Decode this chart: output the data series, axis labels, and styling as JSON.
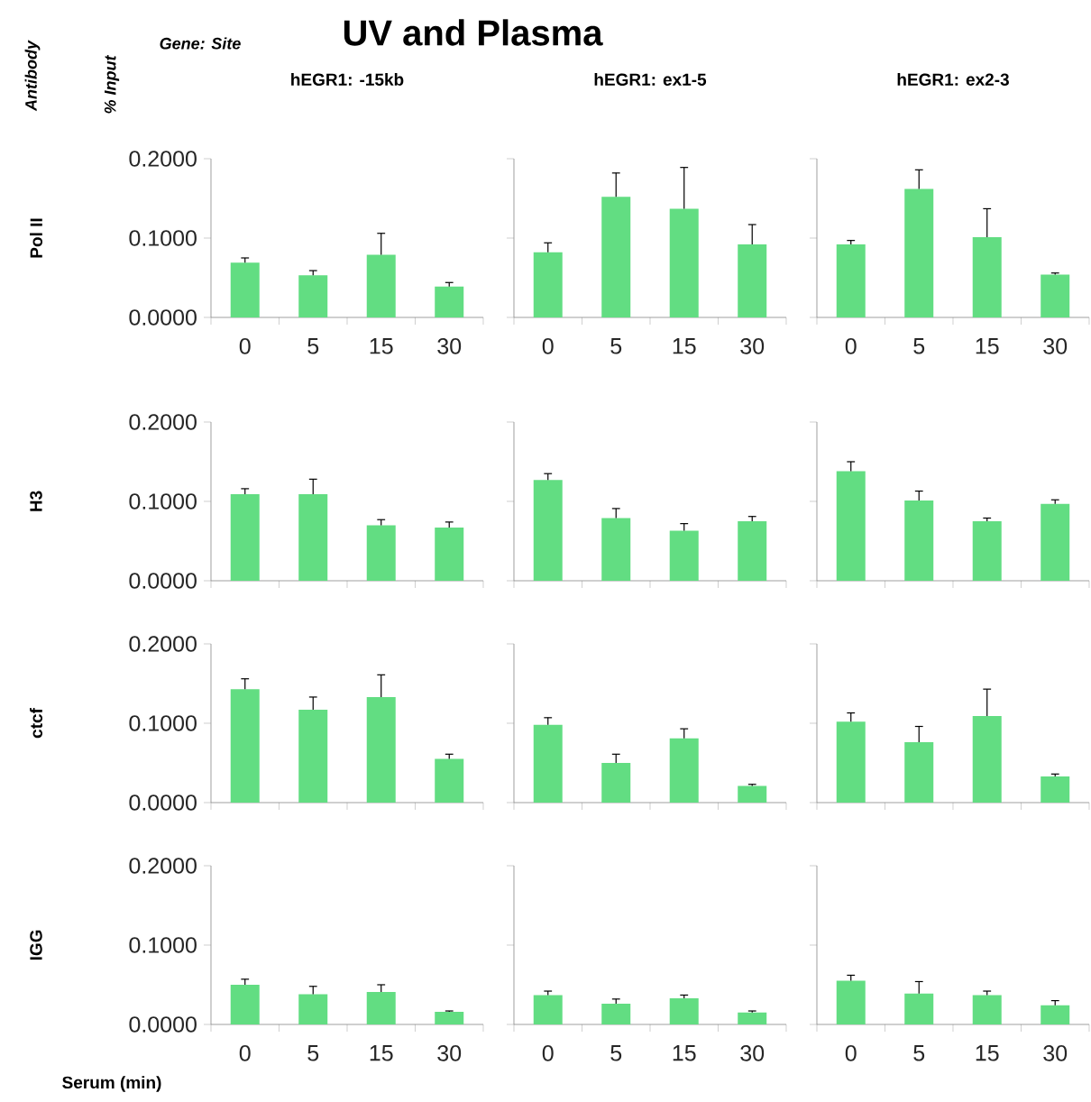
{
  "chart_data": [
    {
      "type": "other",
      "title": "UV and Plasma",
      "annotations": [
        "Antibody",
        "% Input",
        "Gene: Site"
      ]
    },
    {
      "type": "bar",
      "title": "hEGR1: -15kb",
      "ylabel": "Pol II",
      "categories": [
        "0",
        "5",
        "15",
        "30"
      ],
      "values": [
        0.069,
        0.053,
        0.079,
        0.039
      ],
      "errors": [
        [
          0.069,
          0.075
        ],
        [
          0.053,
          0.059
        ],
        [
          0.079,
          0.106
        ],
        [
          0.039,
          0.044
        ]
      ],
      "color": "#62dd82",
      "ylim": [
        0,
        0.2
      ],
      "yticks": [
        {
          "value": 0,
          "label": "0.0000"
        },
        {
          "value": 0.1,
          "label": "0.1000"
        },
        {
          "value": 0.2,
          "label": "0.2000"
        }
      ]
    },
    {
      "type": "bar",
      "title": "hEGR1: ex1-5",
      "categories": [
        "0",
        "5",
        "15",
        "30"
      ],
      "values": [
        0.082,
        0.152,
        0.137,
        0.092
      ],
      "errors": [
        [
          0.082,
          0.094
        ],
        [
          0.152,
          0.182
        ],
        [
          0.137,
          0.189
        ],
        [
          0.092,
          0.117
        ]
      ],
      "color": "#62dd82",
      "ylim": [
        0,
        0.2
      ],
      "yticks": [
        0,
        0.1,
        0.2
      ],
      "tick_labels": "x"
    },
    {
      "type": "bar",
      "title": "hEGR1: ex2-3",
      "categories": [
        "0",
        "5",
        "15",
        "30"
      ],
      "values": [
        0.092,
        0.162,
        0.101,
        0.054
      ],
      "errors": [
        [
          0.092,
          0.097
        ],
        [
          0.162,
          0.186
        ],
        [
          0.101,
          0.137
        ],
        [
          0.054,
          0.056
        ]
      ],
      "color": "#62dd82",
      "ylim": [
        0,
        0.2
      ],
      "yticks": [
        0,
        0.1,
        0.2
      ],
      "tick_labels": "x"
    },
    {
      "type": "bar",
      "ylabel": "H3",
      "categories": [
        "0",
        "5",
        "15",
        "30"
      ],
      "values": [
        0.109,
        0.109,
        0.07,
        0.067
      ],
      "errors": [
        [
          0.109,
          0.116
        ],
        [
          0.109,
          0.128
        ],
        [
          0.07,
          0.077
        ],
        [
          0.067,
          0.074
        ]
      ],
      "color": "#62dd82",
      "ylim": [
        0,
        0.2
      ],
      "yticks": [
        {
          "value": 0,
          "label": "0.0000"
        },
        {
          "value": 0.1,
          "label": "0.1000"
        },
        {
          "value": 0.2,
          "label": "0.2000"
        }
      ],
      "tick_labels": "y"
    },
    {
      "type": "bar",
      "categories": [
        "0",
        "5",
        "15",
        "30"
      ],
      "values": [
        0.127,
        0.079,
        0.063,
        0.075
      ],
      "errors": [
        [
          0.127,
          0.135
        ],
        [
          0.079,
          0.091
        ],
        [
          0.063,
          0.072
        ],
        [
          0.075,
          0.081
        ]
      ],
      "color": "#62dd82",
      "ylim": [
        0,
        0.2
      ],
      "yticks": [
        0,
        0.1,
        0.2
      ],
      "tick_labels": false
    },
    {
      "type": "bar",
      "categories": [
        "0",
        "5",
        "15",
        "30"
      ],
      "values": [
        0.138,
        0.101,
        0.075,
        0.097
      ],
      "errors": [
        [
          0.138,
          0.15
        ],
        [
          0.101,
          0.113
        ],
        [
          0.075,
          0.079
        ],
        [
          0.097,
          0.102
        ]
      ],
      "color": "#62dd82",
      "ylim": [
        0,
        0.2
      ],
      "yticks": [
        0,
        0.1,
        0.2
      ],
      "tick_labels": false
    },
    {
      "type": "bar",
      "ylabel": "ctcf",
      "categories": [
        "0",
        "5",
        "15",
        "30"
      ],
      "values": [
        0.143,
        0.117,
        0.133,
        0.055
      ],
      "errors": [
        [
          0.143,
          0.156
        ],
        [
          0.117,
          0.133
        ],
        [
          0.133,
          0.161
        ],
        [
          0.055,
          0.061
        ]
      ],
      "color": "#62dd82",
      "ylim": [
        0,
        0.2
      ],
      "yticks": [
        {
          "value": 0,
          "label": "0.0000"
        },
        {
          "value": 0.1,
          "label": "0.1000"
        },
        {
          "value": 0.2,
          "label": "0.2000"
        }
      ],
      "tick_labels": "y"
    },
    {
      "type": "bar",
      "categories": [
        "0",
        "5",
        "15",
        "30"
      ],
      "values": [
        0.098,
        0.05,
        0.081,
        0.021
      ],
      "errors": [
        [
          0.098,
          0.107
        ],
        [
          0.05,
          0.061
        ],
        [
          0.081,
          0.093
        ],
        [
          0.021,
          0.023
        ]
      ],
      "color": "#62dd82",
      "ylim": [
        0,
        0.2
      ],
      "yticks": [
        0,
        0.1,
        0.2
      ],
      "tick_labels": false
    },
    {
      "type": "bar",
      "categories": [
        "0",
        "5",
        "15",
        "30"
      ],
      "values": [
        0.102,
        0.076,
        0.109,
        0.033
      ],
      "errors": [
        [
          0.102,
          0.113
        ],
        [
          0.076,
          0.096
        ],
        [
          0.109,
          0.143
        ],
        [
          0.033,
          0.036
        ]
      ],
      "color": "#62dd82",
      "ylim": [
        0,
        0.2
      ],
      "yticks": [
        0,
        0.1,
        0.2
      ],
      "tick_labels": false
    },
    {
      "type": "bar",
      "ylabel": "IGG",
      "xlabel": "Serum (min)",
      "categories": [
        "0",
        "5",
        "15",
        "30"
      ],
      "values": [
        0.05,
        0.038,
        0.041,
        0.016
      ],
      "errors": [
        [
          0.05,
          0.057
        ],
        [
          0.038,
          0.048
        ],
        [
          0.041,
          0.05
        ],
        [
          0.016,
          0.017
        ]
      ],
      "color": "#62dd82",
      "ylim": [
        0,
        0.2
      ],
      "yticks": [
        {
          "value": 0,
          "label": "0.0000"
        },
        {
          "value": 0.1,
          "label": "0.1000"
        },
        {
          "value": 0.2,
          "label": "0.2000"
        }
      ]
    },
    {
      "type": "bar",
      "categories": [
        "0",
        "5",
        "15",
        "30"
      ],
      "values": [
        0.037,
        0.026,
        0.033,
        0.015
      ],
      "errors": [
        [
          0.037,
          0.042
        ],
        [
          0.026,
          0.032
        ],
        [
          0.033,
          0.037
        ],
        [
          0.015,
          0.017
        ]
      ],
      "color": "#62dd82",
      "ylim": [
        0,
        0.2
      ],
      "yticks": [
        0,
        0.1,
        0.2
      ],
      "tick_labels": "x"
    },
    {
      "type": "bar",
      "categories": [
        "0",
        "5",
        "15",
        "30"
      ],
      "values": [
        0.055,
        0.039,
        0.037,
        0.024
      ],
      "errors": [
        [
          0.055,
          0.062
        ],
        [
          0.039,
          0.054
        ],
        [
          0.037,
          0.042
        ],
        [
          0.024,
          0.03
        ]
      ],
      "color": "#62dd82",
      "ylim": [
        0,
        0.2
      ],
      "yticks": [
        0,
        0.1,
        0.2
      ],
      "tick_labels": "x"
    }
  ]
}
